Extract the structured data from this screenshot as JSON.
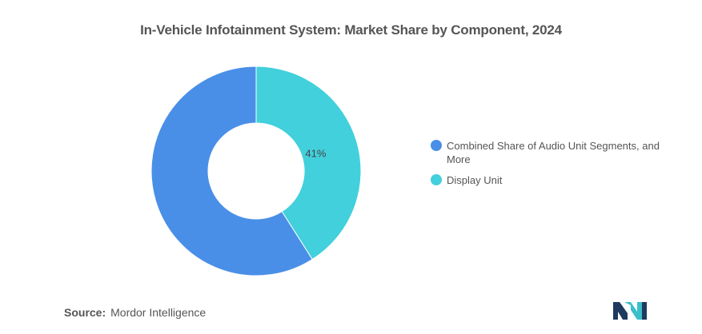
{
  "chart_data": {
    "type": "pie",
    "title": "In-Vehicle Infotainment System: Market Share by Component, 2024",
    "series": [
      {
        "name": "Combined Share of Audio Unit Segments, and More",
        "value": 59,
        "color": "#4a8fe7"
      },
      {
        "name": "Display Unit",
        "value": 41,
        "color": "#41d0dc",
        "label": "41%"
      }
    ],
    "legend_position": "right"
  },
  "source": {
    "label": "Source:",
    "text": "Mordor Intelligence"
  },
  "colors": {
    "text": "#555555",
    "logo_dark": "#1e3a5f",
    "logo_teal": "#3bbfc9"
  },
  "logo_icon": "mordor-intelligence-logo-icon"
}
